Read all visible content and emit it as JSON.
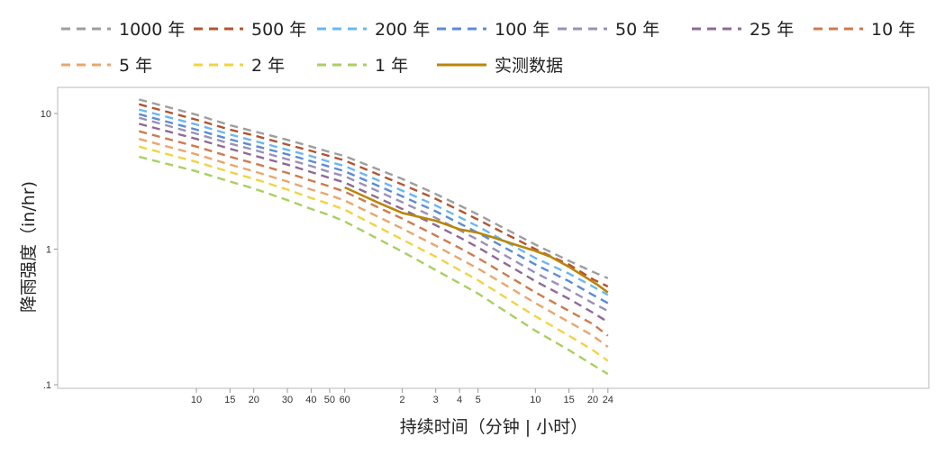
{
  "chart_data": {
    "type": "line",
    "title": "",
    "xlabel": "持续时间（分钟 | 小时）",
    "ylabel": "降雨强度（in/hr)",
    "x_scale": "log",
    "y_scale": "log",
    "xlim_minutes": [
      3,
      1440
    ],
    "ylim": [
      0.1,
      20
    ],
    "grid": false,
    "legend_position": "top",
    "x_ticks": [
      {
        "minutes": 10,
        "label": "10"
      },
      {
        "minutes": 15,
        "label": "15"
      },
      {
        "minutes": 20,
        "label": "20"
      },
      {
        "minutes": 30,
        "label": "30"
      },
      {
        "minutes": 40,
        "label": "40"
      },
      {
        "minutes": 50,
        "label": "50"
      },
      {
        "minutes": 60,
        "label": "60"
      },
      {
        "minutes": 120,
        "label": "2"
      },
      {
        "minutes": 180,
        "label": "3"
      },
      {
        "minutes": 240,
        "label": "4"
      },
      {
        "minutes": 300,
        "label": "5"
      },
      {
        "minutes": 600,
        "label": "10"
      },
      {
        "minutes": 900,
        "label": "15"
      },
      {
        "minutes": 1200,
        "label": "20"
      },
      {
        "minutes": 1440,
        "label": "24"
      }
    ],
    "y_ticks": [
      {
        "value": 10,
        "label": "10"
      },
      {
        "value": 1,
        "label": "1"
      },
      {
        "value": 0.1,
        "label": ".1"
      }
    ],
    "x_minutes": [
      5,
      10,
      15,
      20,
      30,
      40,
      50,
      60,
      120,
      180,
      240,
      300,
      600,
      900,
      1200,
      1440
    ],
    "series": [
      {
        "name": "1000 年",
        "color": "#9e9e9e",
        "dashed": true,
        "values": [
          12.7,
          9.8,
          8.2,
          7.4,
          6.4,
          5.7,
          5.2,
          4.85,
          3.3,
          2.55,
          2.1,
          1.8,
          1.08,
          0.82,
          0.68,
          0.61
        ]
      },
      {
        "name": "500 年",
        "color": "#b5532f",
        "dashed": true,
        "values": [
          11.7,
          9.0,
          7.6,
          6.9,
          5.9,
          5.3,
          4.85,
          4.5,
          3.0,
          2.35,
          1.93,
          1.65,
          1.0,
          0.77,
          0.6,
          0.53
        ]
      },
      {
        "name": "200 年",
        "color": "#6ab7f0",
        "dashed": true,
        "values": [
          10.7,
          8.3,
          7.0,
          6.3,
          5.4,
          4.85,
          4.4,
          4.1,
          2.7,
          2.1,
          1.72,
          1.47,
          0.86,
          0.66,
          0.53,
          0.46
        ]
      },
      {
        "name": "100 年",
        "color": "#5b8bd6",
        "dashed": true,
        "values": [
          9.9,
          7.6,
          6.45,
          5.8,
          5.0,
          4.45,
          4.05,
          3.75,
          2.45,
          1.9,
          1.55,
          1.32,
          0.77,
          0.58,
          0.46,
          0.4
        ]
      },
      {
        "name": "50 年",
        "color": "#9a90b8",
        "dashed": true,
        "values": [
          9.3,
          7.1,
          6.0,
          5.4,
          4.6,
          4.1,
          3.7,
          3.45,
          2.22,
          1.7,
          1.38,
          1.17,
          0.67,
          0.5,
          0.4,
          0.35
        ]
      },
      {
        "name": "25 年",
        "color": "#8e6a96",
        "dashed": true,
        "values": [
          8.4,
          6.5,
          5.5,
          4.9,
          4.2,
          3.7,
          3.35,
          3.1,
          1.98,
          1.5,
          1.22,
          1.03,
          0.58,
          0.43,
          0.34,
          0.29
        ]
      },
      {
        "name": "10 年",
        "color": "#cf7a4d",
        "dashed": true,
        "values": [
          7.4,
          5.7,
          4.8,
          4.3,
          3.65,
          3.2,
          2.9,
          2.65,
          1.68,
          1.26,
          1.02,
          0.86,
          0.48,
          0.35,
          0.28,
          0.23
        ]
      },
      {
        "name": "5 年",
        "color": "#e8a66e",
        "dashed": true,
        "values": [
          6.5,
          5.0,
          4.2,
          3.75,
          3.15,
          2.75,
          2.5,
          2.28,
          1.42,
          1.06,
          0.85,
          0.72,
          0.4,
          0.29,
          0.23,
          0.19
        ]
      },
      {
        "name": "2 年",
        "color": "#f2d341",
        "dashed": true,
        "values": [
          5.7,
          4.4,
          3.7,
          3.3,
          2.75,
          2.38,
          2.15,
          1.95,
          1.18,
          0.88,
          0.7,
          0.59,
          0.32,
          0.23,
          0.18,
          0.15
        ]
      },
      {
        "name": "1 年",
        "color": "#a9cf62",
        "dashed": true,
        "values": [
          4.8,
          3.75,
          3.15,
          2.8,
          2.3,
          1.98,
          1.78,
          1.6,
          0.96,
          0.7,
          0.56,
          0.47,
          0.25,
          0.18,
          0.14,
          0.12
        ]
      },
      {
        "name": "实测数据",
        "color": "#b8860b",
        "dashed": false,
        "x_minutes": [
          60,
          90,
          120,
          180,
          240,
          300,
          360,
          480,
          600,
          720,
          900,
          1080,
          1260,
          1440
        ],
        "values": [
          2.85,
          2.2,
          1.85,
          1.62,
          1.4,
          1.32,
          1.22,
          1.07,
          0.97,
          0.88,
          0.74,
          0.63,
          0.55,
          0.48
        ]
      }
    ]
  }
}
